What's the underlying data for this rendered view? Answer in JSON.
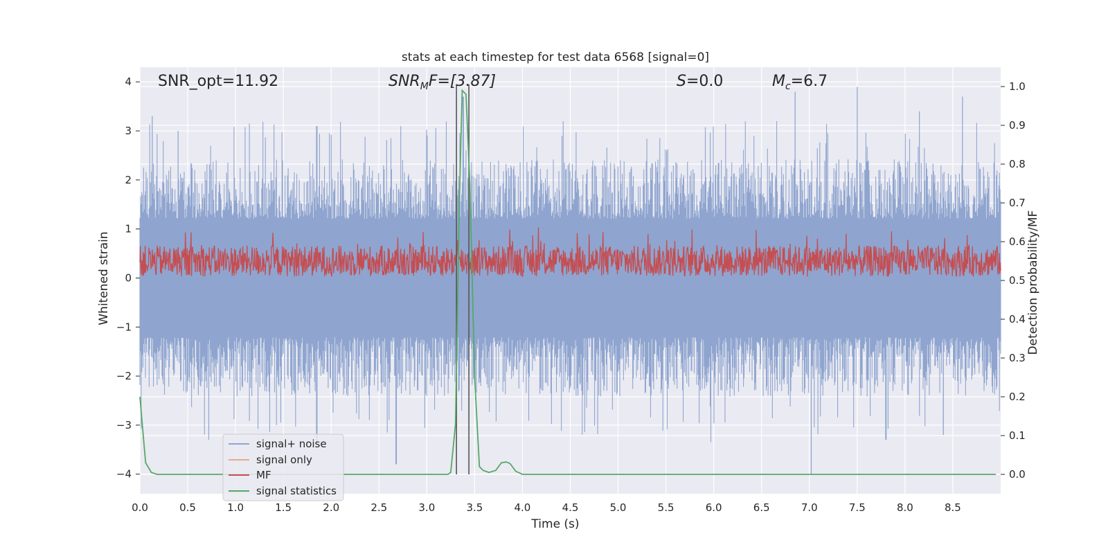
{
  "chart_data": {
    "type": "line",
    "title": "stats at each timestep for test data 6568 [signal=0]",
    "xlabel": "Time (s)",
    "ylabel_left": "Whitened strain",
    "ylabel_right": "Detection probability/MF",
    "xlim": [
      0.0,
      9.0
    ],
    "ylim_left": [
      -4.4,
      4.3
    ],
    "ylim_right": [
      -0.05,
      1.05
    ],
    "x_ticks": [
      "0.0",
      "0.5",
      "1.0",
      "1.5",
      "2.0",
      "2.5",
      "3.0",
      "3.5",
      "4.0",
      "4.5",
      "5.0",
      "5.5",
      "6.0",
      "6.5",
      "7.0",
      "7.5",
      "8.0",
      "8.5"
    ],
    "x_tick_values": [
      0.0,
      0.5,
      1.0,
      1.5,
      2.0,
      2.5,
      3.0,
      3.5,
      4.0,
      4.5,
      5.0,
      5.5,
      6.0,
      6.5,
      7.0,
      7.5,
      8.0,
      8.5
    ],
    "y_left_ticks": [
      "−4",
      "−3",
      "−2",
      "−1",
      "0",
      "1",
      "2",
      "3",
      "4"
    ],
    "y_left_tick_values": [
      -4,
      -3,
      -2,
      -1,
      0,
      1,
      2,
      3,
      4
    ],
    "y_right_ticks": [
      "0.0",
      "0.1",
      "0.2",
      "0.3",
      "0.4",
      "0.5",
      "0.6",
      "0.7",
      "0.8",
      "0.9",
      "1.0"
    ],
    "y_right_tick_values": [
      0.0,
      0.1,
      0.2,
      0.3,
      0.4,
      0.5,
      0.6,
      0.7,
      0.8,
      0.9,
      1.0
    ],
    "annotations": {
      "snr_opt": "SNR_opt=11.92",
      "snr_mf_base": "SNR",
      "snr_mf_sub": "M",
      "snr_mf_tail": "F=[3.87]",
      "s_italic": "S",
      "s_tail": "=0.0",
      "mc_base": "M",
      "mc_sub": "c",
      "mc_tail": "=6.7"
    },
    "vlines_x": [
      3.31,
      3.44
    ],
    "legend": {
      "placement": "lower-left",
      "entries": [
        {
          "label": "signal+ noise",
          "color": "#8fa5cf"
        },
        {
          "label": "signal only",
          "color": "#e9a98c"
        },
        {
          "label": "MF",
          "color": "#c44e52"
        },
        {
          "label": "signal statistics",
          "color": "#55a868"
        }
      ]
    },
    "series": [
      {
        "name": "signal+ noise",
        "axis": "left",
        "description_kind": "noise",
        "x_range": [
          0.0,
          9.0
        ],
        "envelope_upper_typical": 2.2,
        "envelope_lower_typical": -2.2,
        "peaks_up": [
          [
            0.13,
            3.3
          ],
          [
            0.4,
            3.0
          ],
          [
            1.85,
            3.1
          ],
          [
            3.38,
            3.7
          ],
          [
            6.85,
            3.8
          ],
          [
            7.5,
            3.9
          ],
          [
            8.15,
            3.4
          ],
          [
            8.6,
            3.7
          ]
        ],
        "peaks_down": [
          [
            0.72,
            -3.3
          ],
          [
            1.85,
            -3.4
          ],
          [
            2.68,
            -3.8
          ],
          [
            5.97,
            -3.35
          ],
          [
            7.02,
            -4.0
          ],
          [
            7.8,
            -3.3
          ],
          [
            8.4,
            -3.2
          ]
        ]
      },
      {
        "name": "MF",
        "axis": "right",
        "description_kind": "band",
        "x_range": [
          0.0,
          9.0
        ],
        "band_low": 0.51,
        "band_high": 0.59,
        "max": 0.64
      },
      {
        "name": "signal statistics",
        "axis": "right",
        "x": [
          0.0,
          0.06,
          0.12,
          0.18,
          0.3,
          0.5,
          1.0,
          1.5,
          2.0,
          2.5,
          3.0,
          3.22,
          3.25,
          3.3,
          3.34,
          3.37,
          3.41,
          3.45,
          3.5,
          3.55,
          3.59,
          3.65,
          3.72,
          3.78,
          3.83,
          3.87,
          3.93,
          4.0,
          4.5,
          5.0,
          5.5,
          6.0,
          6.5,
          7.0,
          7.5,
          8.0,
          8.5,
          8.95
        ],
        "y": [
          0.2,
          0.03,
          0.005,
          0.0,
          0.0,
          0.0,
          0.0,
          0.0,
          0.0,
          0.0,
          0.0,
          0.0,
          0.005,
          0.13,
          0.7,
          0.99,
          0.98,
          0.75,
          0.25,
          0.02,
          0.01,
          0.005,
          0.01,
          0.03,
          0.032,
          0.028,
          0.008,
          0.0,
          0.0,
          0.0,
          0.0,
          0.0,
          0.0,
          0.0,
          0.0,
          0.0,
          0.0,
          0.0
        ],
        "color": "#55a868"
      }
    ]
  },
  "colors": {
    "plot_bg": "#eaeaf2",
    "grid": "#ffffff",
    "noise": "#8fa5cf",
    "mf": "#c44e52",
    "stats": "#55a868",
    "vline": "#555555"
  }
}
